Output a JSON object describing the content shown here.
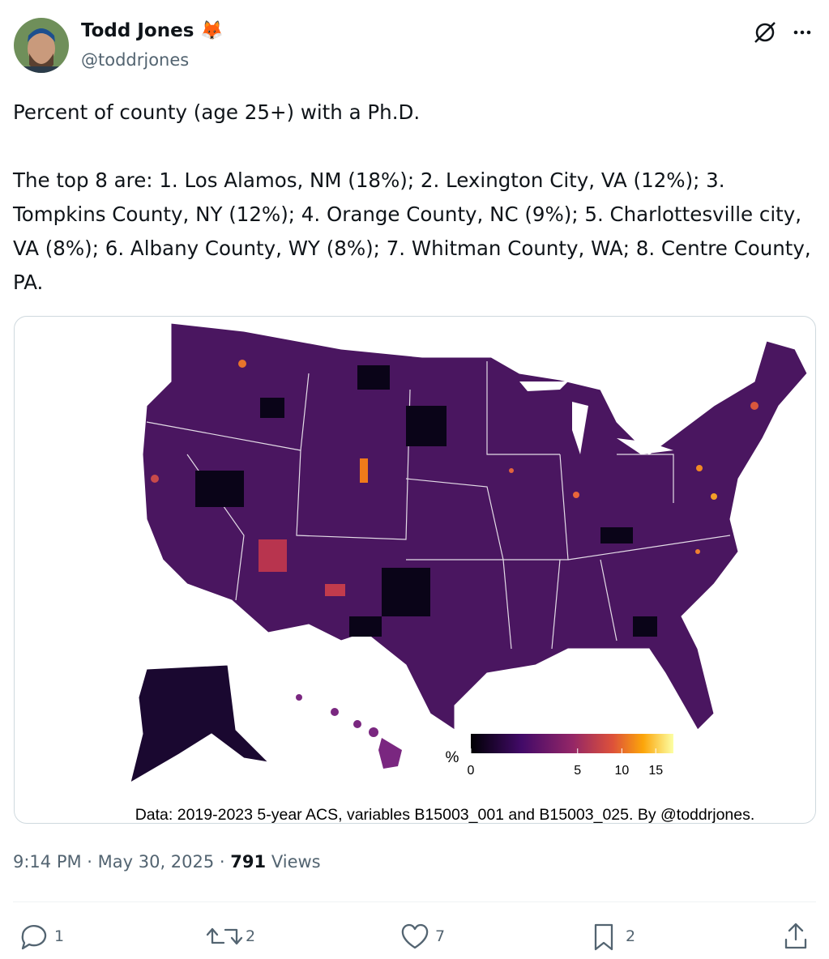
{
  "post": {
    "author": {
      "name": "Todd Jones 🦊",
      "handle": "@toddrjones"
    },
    "text": [
      "Percent of county (age 25+) with a Ph.D.",
      "The top 8 are: 1. Los Alamos, NM (18%); 2. Lexington City, VA (12%); 3. Tompkins County, NY (12%); 4. Orange County, NC (9%); 5. Charlottesville city, VA (8%); 6. Albany County, WY (8%); 7. Whitman County, WA; 8. Centre County, PA."
    ],
    "image": {
      "legend": {
        "label": "%",
        "ticks": [
          0,
          5,
          10,
          15
        ],
        "range": [
          0,
          18
        ],
        "scale": "sqrt"
      },
      "caption": "Data: 2019-2023 5-year ACS, variables B15003_001 and B15003_025. By @toddrjones."
    },
    "timestamp": "9:14 PM · May 30, 2025 ·",
    "views": 791,
    "views_label": "Views",
    "actions": {
      "replies": 1,
      "reposts": 2,
      "likes": 7,
      "bookmarks": 2
    }
  }
}
